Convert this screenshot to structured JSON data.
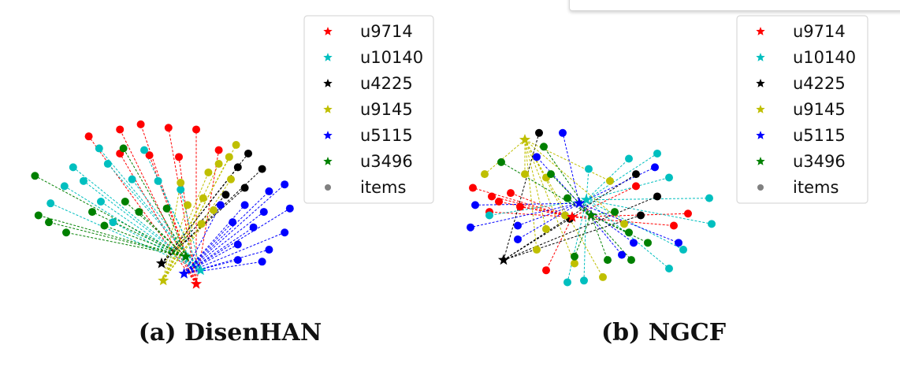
{
  "chart_data": [
    {
      "type": "scatter",
      "subtitle": "(a) DisenHAN",
      "legend": {
        "placement": "top-right",
        "entries": [
          {
            "label": "u9714",
            "color": "#ff0000",
            "marker": "star"
          },
          {
            "label": "u10140",
            "color": "#00bfbf",
            "marker": "star"
          },
          {
            "label": "u4225",
            "color": "#000000",
            "marker": "star"
          },
          {
            "label": "u9145",
            "color": "#bfbf00",
            "marker": "star"
          },
          {
            "label": "u5115",
            "color": "#0000ff",
            "marker": "star"
          },
          {
            "label": "u3496",
            "color": "#008000",
            "marker": "star"
          },
          {
            "label": "items",
            "color": "#808080",
            "marker": "dot"
          }
        ]
      },
      "users": [
        {
          "name": "u9714",
          "x": 2.0,
          "y": 0.2
        },
        {
          "name": "u10140",
          "x": 2.25,
          "y": 1.0
        },
        {
          "name": "u4225",
          "x": 0.0,
          "y": 1.4
        },
        {
          "name": "u9145",
          "x": 0.1,
          "y": 0.4
        },
        {
          "name": "u5115",
          "x": 1.3,
          "y": 0.8
        },
        {
          "name": "u3496",
          "x": 1.4,
          "y": 1.8
        }
      ],
      "items": [
        {
          "user": "u9714",
          "x": -2.4,
          "y": 7.8
        },
        {
          "user": "u9714",
          "x": -4.2,
          "y": 8.8
        },
        {
          "user": "u9714",
          "x": -2.4,
          "y": 9.2
        },
        {
          "user": "u9714",
          "x": -1.2,
          "y": 9.5
        },
        {
          "user": "u9714",
          "x": 0.4,
          "y": 9.3
        },
        {
          "user": "u9714",
          "x": 2.0,
          "y": 9.2
        },
        {
          "user": "u9714",
          "x": 3.3,
          "y": 8.0
        },
        {
          "user": "u9714",
          "x": 1.0,
          "y": 7.6
        },
        {
          "user": "u9714",
          "x": -0.7,
          "y": 7.7
        },
        {
          "user": "u10140",
          "x": -5.6,
          "y": 5.9
        },
        {
          "user": "u10140",
          "x": -5.1,
          "y": 7.0
        },
        {
          "user": "u10140",
          "x": -4.5,
          "y": 6.2
        },
        {
          "user": "u10140",
          "x": -3.6,
          "y": 8.1
        },
        {
          "user": "u10140",
          "x": -3.1,
          "y": 7.2
        },
        {
          "user": "u10140",
          "x": -3.5,
          "y": 5.0
        },
        {
          "user": "u10140",
          "x": -1.7,
          "y": 6.3
        },
        {
          "user": "u10140",
          "x": -0.2,
          "y": 6.2
        },
        {
          "user": "u10140",
          "x": 1.1,
          "y": 5.7
        },
        {
          "user": "u10140",
          "x": -6.4,
          "y": 4.9
        },
        {
          "user": "u10140",
          "x": -2.8,
          "y": 3.8
        },
        {
          "user": "u10140",
          "x": -1.0,
          "y": 8.0
        },
        {
          "user": "u4225",
          "x": 5.0,
          "y": 7.8
        },
        {
          "user": "u4225",
          "x": 4.4,
          "y": 7.0
        },
        {
          "user": "u4225",
          "x": 5.8,
          "y": 6.9
        },
        {
          "user": "u4225",
          "x": 3.7,
          "y": 5.4
        },
        {
          "user": "u4225",
          "x": 4.8,
          "y": 5.8
        },
        {
          "user": "u9145",
          "x": 4.3,
          "y": 8.3
        },
        {
          "user": "u9145",
          "x": 3.9,
          "y": 7.6
        },
        {
          "user": "u9145",
          "x": 3.3,
          "y": 7.2
        },
        {
          "user": "u9145",
          "x": 2.7,
          "y": 6.7
        },
        {
          "user": "u9145",
          "x": 4.0,
          "y": 6.3
        },
        {
          "user": "u9145",
          "x": 2.4,
          "y": 5.2
        },
        {
          "user": "u9145",
          "x": 3.0,
          "y": 4.5
        },
        {
          "user": "u9145",
          "x": 2.3,
          "y": 3.7
        },
        {
          "user": "u9145",
          "x": 1.5,
          "y": 4.8
        },
        {
          "user": "u9145",
          "x": 1.1,
          "y": 6.1
        },
        {
          "user": "u5115",
          "x": 6.2,
          "y": 5.6
        },
        {
          "user": "u5115",
          "x": 7.1,
          "y": 6.0
        },
        {
          "user": "u5115",
          "x": 4.8,
          "y": 4.8
        },
        {
          "user": "u5115",
          "x": 5.9,
          "y": 4.4
        },
        {
          "user": "u5115",
          "x": 7.4,
          "y": 4.6
        },
        {
          "user": "u5115",
          "x": 4.1,
          "y": 3.8
        },
        {
          "user": "u5115",
          "x": 5.3,
          "y": 3.5
        },
        {
          "user": "u5115",
          "x": 7.1,
          "y": 3.2
        },
        {
          "user": "u5115",
          "x": 4.4,
          "y": 2.5
        },
        {
          "user": "u5115",
          "x": 6.2,
          "y": 2.2
        },
        {
          "user": "u5115",
          "x": 4.4,
          "y": 1.6
        },
        {
          "user": "u5115",
          "x": 5.8,
          "y": 1.5
        },
        {
          "user": "u5115",
          "x": 3.4,
          "y": 4.8
        },
        {
          "user": "u3496",
          "x": -7.3,
          "y": 6.5
        },
        {
          "user": "u3496",
          "x": -6.5,
          "y": 3.8
        },
        {
          "user": "u3496",
          "x": -5.5,
          "y": 3.2
        },
        {
          "user": "u3496",
          "x": -2.1,
          "y": 5.0
        },
        {
          "user": "u3496",
          "x": -1.3,
          "y": 4.4
        },
        {
          "user": "u3496",
          "x": -7.1,
          "y": 4.2
        },
        {
          "user": "u3496",
          "x": -3.3,
          "y": 3.6
        },
        {
          "user": "u3496",
          "x": -2.2,
          "y": 8.1
        },
        {
          "user": "u3496",
          "x": 0.3,
          "y": 4.6
        },
        {
          "user": "u3496",
          "x": -4.0,
          "y": 4.4
        }
      ]
    },
    {
      "type": "scatter",
      "subtitle": "(b) NGCF",
      "legend": {
        "placement": "top-right",
        "entries": [
          {
            "label": "u9714",
            "color": "#ff0000",
            "marker": "star"
          },
          {
            "label": "u10140",
            "color": "#00bfbf",
            "marker": "star"
          },
          {
            "label": "u4225",
            "color": "#000000",
            "marker": "star"
          },
          {
            "label": "u9145",
            "color": "#bfbf00",
            "marker": "star"
          },
          {
            "label": "u5115",
            "color": "#0000ff",
            "marker": "star"
          },
          {
            "label": "u3496",
            "color": "#008000",
            "marker": "star"
          },
          {
            "label": "items",
            "color": "#808080",
            "marker": "dot"
          }
        ]
      },
      "users": [
        {
          "name": "u9714",
          "x": 4.7,
          "y": 4.1
        },
        {
          "name": "u10140",
          "x": 5.3,
          "y": 5.1
        },
        {
          "name": "u4225",
          "x": 1.8,
          "y": 1.6
        },
        {
          "name": "u9145",
          "x": 2.7,
          "y": 8.6
        },
        {
          "name": "u5115",
          "x": 5.0,
          "y": 4.9
        },
        {
          "name": "u3496",
          "x": 5.5,
          "y": 4.2
        }
      ],
      "items": [
        {
          "user": "u9714",
          "x": 0.5,
          "y": 5.8
        },
        {
          "user": "u9714",
          "x": 1.6,
          "y": 5.0
        },
        {
          "user": "u9714",
          "x": 1.2,
          "y": 4.4
        },
        {
          "user": "u9714",
          "x": 2.5,
          "y": 4.7
        },
        {
          "user": "u9714",
          "x": 1.3,
          "y": 5.3
        },
        {
          "user": "u9714",
          "x": 3.6,
          "y": 1.0
        },
        {
          "user": "u9714",
          "x": 7.4,
          "y": 5.9
        },
        {
          "user": "u9714",
          "x": 9.6,
          "y": 4.3
        },
        {
          "user": "u9714",
          "x": 9.0,
          "y": 3.6
        },
        {
          "user": "u9714",
          "x": 2.1,
          "y": 5.5
        },
        {
          "user": "u10140",
          "x": 7.1,
          "y": 7.5
        },
        {
          "user": "u10140",
          "x": 8.3,
          "y": 7.8
        },
        {
          "user": "u10140",
          "x": 8.8,
          "y": 6.4
        },
        {
          "user": "u10140",
          "x": 10.5,
          "y": 5.2
        },
        {
          "user": "u10140",
          "x": 10.6,
          "y": 3.7
        },
        {
          "user": "u10140",
          "x": 9.4,
          "y": 2.2
        },
        {
          "user": "u10140",
          "x": 8.8,
          "y": 1.1
        },
        {
          "user": "u10140",
          "x": 5.2,
          "y": 0.4
        },
        {
          "user": "u10140",
          "x": 4.5,
          "y": 0.3
        },
        {
          "user": "u10140",
          "x": 1.2,
          "y": 4.2
        },
        {
          "user": "u10140",
          "x": 5.4,
          "y": 6.9
        },
        {
          "user": "u4225",
          "x": 3.3,
          "y": 9.0
        },
        {
          "user": "u4225",
          "x": 7.4,
          "y": 6.6
        },
        {
          "user": "u4225",
          "x": 8.3,
          "y": 5.3
        },
        {
          "user": "u4225",
          "x": 7.6,
          "y": 4.2
        },
        {
          "user": "u4225",
          "x": 4.6,
          "y": 4.0
        },
        {
          "user": "u9145",
          "x": 1.0,
          "y": 6.6
        },
        {
          "user": "u9145",
          "x": 2.7,
          "y": 6.6
        },
        {
          "user": "u9145",
          "x": 3.6,
          "y": 6.4
        },
        {
          "user": "u9145",
          "x": 4.4,
          "y": 4.2
        },
        {
          "user": "u9145",
          "x": 3.2,
          "y": 2.2
        },
        {
          "user": "u9145",
          "x": 4.8,
          "y": 1.4
        },
        {
          "user": "u9145",
          "x": 6.0,
          "y": 0.6
        },
        {
          "user": "u9145",
          "x": 6.3,
          "y": 6.2
        },
        {
          "user": "u9145",
          "x": 6.9,
          "y": 3.7
        },
        {
          "user": "u9145",
          "x": 3.6,
          "y": 3.4
        },
        {
          "user": "u5115",
          "x": 4.3,
          "y": 9.0
        },
        {
          "user": "u5115",
          "x": 3.2,
          "y": 7.6
        },
        {
          "user": "u5115",
          "x": 0.6,
          "y": 4.8
        },
        {
          "user": "u5115",
          "x": 0.4,
          "y": 3.5
        },
        {
          "user": "u5115",
          "x": 2.4,
          "y": 3.6
        },
        {
          "user": "u5115",
          "x": 2.4,
          "y": 2.8
        },
        {
          "user": "u5115",
          "x": 8.2,
          "y": 7.0
        },
        {
          "user": "u5115",
          "x": 9.2,
          "y": 2.6
        },
        {
          "user": "u5115",
          "x": 7.3,
          "y": 2.6
        },
        {
          "user": "u5115",
          "x": 6.8,
          "y": 1.9
        },
        {
          "user": "u3496",
          "x": 1.7,
          "y": 7.3
        },
        {
          "user": "u3496",
          "x": 3.5,
          "y": 8.2
        },
        {
          "user": "u3496",
          "x": 3.8,
          "y": 6.6
        },
        {
          "user": "u3496",
          "x": 4.8,
          "y": 1.8
        },
        {
          "user": "u3496",
          "x": 6.5,
          "y": 4.4
        },
        {
          "user": "u3496",
          "x": 7.1,
          "y": 3.2
        },
        {
          "user": "u3496",
          "x": 7.9,
          "y": 2.6
        },
        {
          "user": "u3496",
          "x": 7.2,
          "y": 1.6
        },
        {
          "user": "u3496",
          "x": 6.2,
          "y": 1.6
        },
        {
          "user": "u3496",
          "x": 4.5,
          "y": 5.2
        }
      ]
    }
  ]
}
